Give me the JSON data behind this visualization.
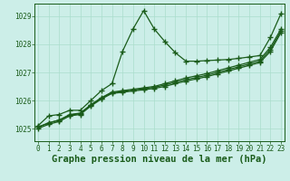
{
  "title": "Graphe pression niveau de la mer (hPa)",
  "bg_color": "#cceee8",
  "grid_color": "#aaddcc",
  "line_color": "#1a5c1a",
  "x_ticks": [
    0,
    1,
    2,
    3,
    4,
    5,
    6,
    7,
    8,
    9,
    10,
    11,
    12,
    13,
    14,
    15,
    16,
    17,
    18,
    19,
    20,
    21,
    22,
    23
  ],
  "y_ticks": [
    1025,
    1026,
    1027,
    1028,
    1029
  ],
  "ylim": [
    1024.55,
    1029.45
  ],
  "xlim": [
    -0.3,
    23.3
  ],
  "series": [
    [
      1025.1,
      1025.45,
      1025.5,
      1025.65,
      1025.65,
      1026.0,
      1026.35,
      1026.6,
      1027.75,
      1028.55,
      1029.2,
      1028.55,
      1028.1,
      1027.7,
      1027.4,
      1027.4,
      1027.42,
      1027.44,
      1027.46,
      1027.5,
      1027.55,
      1027.6,
      1028.25,
      1029.1
    ],
    [
      1025.05,
      1025.2,
      1025.3,
      1025.5,
      1025.55,
      1025.85,
      1026.1,
      1026.3,
      1026.35,
      1026.4,
      1026.45,
      1026.5,
      1026.6,
      1026.7,
      1026.8,
      1026.88,
      1026.96,
      1027.06,
      1027.16,
      1027.26,
      1027.36,
      1027.46,
      1027.9,
      1028.55
    ],
    [
      1025.05,
      1025.2,
      1025.3,
      1025.48,
      1025.53,
      1025.83,
      1026.08,
      1026.28,
      1026.32,
      1026.37,
      1026.42,
      1026.47,
      1026.55,
      1026.65,
      1026.74,
      1026.82,
      1026.9,
      1027.0,
      1027.1,
      1027.2,
      1027.3,
      1027.4,
      1027.82,
      1028.48
    ],
    [
      1025.0,
      1025.15,
      1025.25,
      1025.45,
      1025.5,
      1025.8,
      1026.05,
      1026.25,
      1026.29,
      1026.34,
      1026.38,
      1026.43,
      1026.5,
      1026.6,
      1026.69,
      1026.77,
      1026.85,
      1026.95,
      1027.05,
      1027.15,
      1027.25,
      1027.35,
      1027.75,
      1028.42
    ]
  ],
  "marker": "+",
  "markersize": 4,
  "linewidth": 0.9,
  "title_fontsize": 7.5,
  "tick_fontsize": 5.5
}
